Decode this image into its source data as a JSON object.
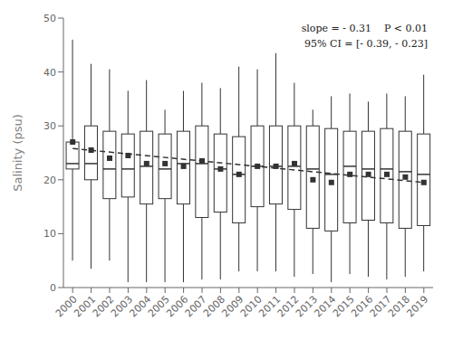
{
  "chart_data": {
    "type": "box",
    "categories": [
      "2000",
      "2001",
      "2002",
      "2003",
      "2004",
      "2005",
      "2006",
      "2007",
      "2008",
      "2009",
      "2010",
      "2011",
      "2012",
      "2013",
      "2014",
      "2015",
      "2016",
      "2017",
      "2018",
      "2019"
    ],
    "whisker_low": [
      5.0,
      3.5,
      5.0,
      1.0,
      1.0,
      1.0,
      1.0,
      1.5,
      1.5,
      3.0,
      3.0,
      3.0,
      2.0,
      2.5,
      1.0,
      2.5,
      2.0,
      1.5,
      2.0,
      3.0
    ],
    "q1": [
      22.0,
      20.0,
      16.5,
      16.8,
      15.5,
      16.5,
      15.5,
      13.0,
      14.0,
      12.0,
      15.0,
      15.5,
      14.5,
      11.0,
      10.5,
      12.0,
      12.5,
      12.0,
      11.0,
      11.5
    ],
    "median": [
      23.0,
      23.0,
      22.0,
      22.0,
      22.5,
      22.0,
      23.0,
      23.0,
      22.0,
      21.0,
      22.5,
      22.5,
      22.5,
      22.0,
      21.0,
      22.5,
      22.0,
      22.0,
      21.5,
      21.0
    ],
    "q3": [
      27.0,
      30.0,
      29.0,
      28.5,
      29.0,
      28.5,
      29.0,
      30.0,
      28.5,
      28.0,
      30.0,
      30.0,
      30.0,
      30.0,
      29.5,
      29.0,
      29.0,
      29.5,
      29.0,
      28.5
    ],
    "whisker_high": [
      46.0,
      41.5,
      40.5,
      36.5,
      38.5,
      33.0,
      36.5,
      38.0,
      37.0,
      41.0,
      40.5,
      43.5,
      38.0,
      33.0,
      35.5,
      36.0,
      34.5,
      36.0,
      35.5,
      39.5
    ],
    "means": [
      27.0,
      25.5,
      24.0,
      24.5,
      23.0,
      23.0,
      22.5,
      23.5,
      22.0,
      21.0,
      22.5,
      22.5,
      23.0,
      20.0,
      19.5,
      21.0,
      21.0,
      21.0,
      20.5,
      19.5
    ],
    "trend": {
      "start": 25.8,
      "end": 19.5
    },
    "ylabel": "Salinity (psu)",
    "ylim": [
      0,
      50
    ],
    "yticks": [
      0,
      10,
      20,
      30,
      40,
      50
    ],
    "annotations": [
      "slope = - 0.31    P < 0.01",
      "95% CI = [- 0.39, - 0.23]"
    ],
    "grid": false
  }
}
